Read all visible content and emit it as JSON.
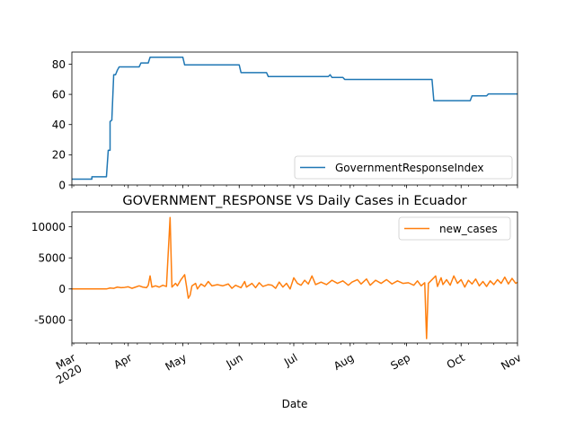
{
  "chart_data": [
    {
      "type": "line",
      "title": "",
      "xlabel": "",
      "ylabel": "",
      "ylim": [
        0,
        88
      ],
      "yticks": [
        0,
        20,
        40,
        60,
        80
      ],
      "legend": "bottom-right",
      "grid": false,
      "series": [
        {
          "name": "GovernmentResponseIndex",
          "color": "#1f77b4",
          "points": [
            [
              "2020-03-01",
              3.85
            ],
            [
              "2020-03-12",
              3.85
            ],
            [
              "2020-03-12",
              5.45
            ],
            [
              "2020-03-20",
              5.45
            ],
            [
              "2020-03-21",
              23
            ],
            [
              "2020-03-22",
              23
            ],
            [
              "2020-03-22",
              42
            ],
            [
              "2020-03-23",
              43
            ],
            [
              "2020-03-23",
              44
            ],
            [
              "2020-03-24",
              73
            ],
            [
              "2020-03-25",
              73
            ],
            [
              "2020-03-26",
              76
            ],
            [
              "2020-03-27",
              78.2
            ],
            [
              "2020-04-07",
              78.2
            ],
            [
              "2020-04-08",
              80.8
            ],
            [
              "2020-04-12",
              80.8
            ],
            [
              "2020-04-13",
              84.6
            ],
            [
              "2020-05-01",
              84.6
            ],
            [
              "2020-05-02",
              79.5
            ],
            [
              "2020-06-01",
              79.5
            ],
            [
              "2020-06-02",
              74.4
            ],
            [
              "2020-06-16",
              74.4
            ],
            [
              "2020-06-17",
              71.8
            ],
            [
              "2020-07-20",
              71.8
            ],
            [
              "2020-07-21",
              73
            ],
            [
              "2020-07-22",
              71.2
            ],
            [
              "2020-07-28",
              71.2
            ],
            [
              "2020-07-29",
              69.9
            ],
            [
              "2020-09-15",
              69.9
            ],
            [
              "2020-09-16",
              55.8
            ],
            [
              "2020-10-06",
              55.8
            ],
            [
              "2020-10-07",
              59
            ],
            [
              "2020-10-15",
              59
            ],
            [
              "2020-10-16",
              60.3
            ],
            [
              "2020-11-01",
              60.3
            ]
          ]
        }
      ]
    },
    {
      "type": "line",
      "title": "GOVERNMENT_RESPONSE VS Daily Cases in Ecuador",
      "xlabel": "Date",
      "ylabel": "",
      "ylim": [
        -8700,
        12400
      ],
      "yticks": [
        -5000,
        0,
        5000,
        10000
      ],
      "xlim": [
        "2020-03-01",
        "2020-11-01"
      ],
      "legend": "top-right",
      "grid": false,
      "series": [
        {
          "name": "new_cases",
          "color": "#ff7f0e",
          "points": [
            [
              "2020-03-01",
              0
            ],
            [
              "2020-03-20",
              0
            ],
            [
              "2020-03-22",
              150
            ],
            [
              "2020-03-24",
              100
            ],
            [
              "2020-03-26",
              300
            ],
            [
              "2020-03-28",
              200
            ],
            [
              "2020-03-30",
              250
            ],
            [
              "2020-04-01",
              350
            ],
            [
              "2020-04-03",
              100
            ],
            [
              "2020-04-05",
              300
            ],
            [
              "2020-04-07",
              500
            ],
            [
              "2020-04-09",
              300
            ],
            [
              "2020-04-11",
              200
            ],
            [
              "2020-04-12",
              600
            ],
            [
              "2020-04-13",
              2100
            ],
            [
              "2020-04-14",
              300
            ],
            [
              "2020-04-16",
              500
            ],
            [
              "2020-04-18",
              300
            ],
            [
              "2020-04-20",
              600
            ],
            [
              "2020-04-22",
              400
            ],
            [
              "2020-04-24",
              11500
            ],
            [
              "2020-04-25",
              300
            ],
            [
              "2020-04-27",
              900
            ],
            [
              "2020-04-28",
              500
            ],
            [
              "2020-04-30",
              1500
            ],
            [
              "2020-05-02",
              2300
            ],
            [
              "2020-05-03",
              500
            ],
            [
              "2020-05-04",
              -1500
            ],
            [
              "2020-05-05",
              -1000
            ],
            [
              "2020-05-06",
              500
            ],
            [
              "2020-05-08",
              900
            ],
            [
              "2020-05-09",
              0
            ],
            [
              "2020-05-11",
              800
            ],
            [
              "2020-05-13",
              400
            ],
            [
              "2020-05-15",
              1200
            ],
            [
              "2020-05-17",
              500
            ],
            [
              "2020-05-20",
              700
            ],
            [
              "2020-05-23",
              500
            ],
            [
              "2020-05-26",
              800
            ],
            [
              "2020-05-28",
              100
            ],
            [
              "2020-05-30",
              600
            ],
            [
              "2020-06-02",
              200
            ],
            [
              "2020-06-04",
              1200
            ],
            [
              "2020-06-05",
              300
            ],
            [
              "2020-06-08",
              900
            ],
            [
              "2020-06-10",
              200
            ],
            [
              "2020-06-12",
              1000
            ],
            [
              "2020-06-14",
              400
            ],
            [
              "2020-06-17",
              700
            ],
            [
              "2020-06-19",
              600
            ],
            [
              "2020-06-21",
              100
            ],
            [
              "2020-06-23",
              1100
            ],
            [
              "2020-06-25",
              300
            ],
            [
              "2020-06-27",
              900
            ],
            [
              "2020-06-29",
              0
            ],
            [
              "2020-07-01",
              1800
            ],
            [
              "2020-07-03",
              900
            ],
            [
              "2020-07-05",
              600
            ],
            [
              "2020-07-07",
              1400
            ],
            [
              "2020-07-09",
              800
            ],
            [
              "2020-07-11",
              2100
            ],
            [
              "2020-07-13",
              700
            ],
            [
              "2020-07-16",
              1100
            ],
            [
              "2020-07-19",
              700
            ],
            [
              "2020-07-22",
              1400
            ],
            [
              "2020-07-25",
              900
            ],
            [
              "2020-07-28",
              1300
            ],
            [
              "2020-07-31",
              600
            ],
            [
              "2020-08-02",
              1100
            ],
            [
              "2020-08-05",
              1500
            ],
            [
              "2020-08-07",
              800
            ],
            [
              "2020-08-10",
              1600
            ],
            [
              "2020-08-12",
              600
            ],
            [
              "2020-08-15",
              1400
            ],
            [
              "2020-08-18",
              900
            ],
            [
              "2020-08-21",
              1500
            ],
            [
              "2020-08-24",
              800
            ],
            [
              "2020-08-27",
              1300
            ],
            [
              "2020-08-30",
              900
            ],
            [
              "2020-09-02",
              1000
            ],
            [
              "2020-09-05",
              600
            ],
            [
              "2020-09-07",
              1300
            ],
            [
              "2020-09-09",
              500
            ],
            [
              "2020-09-11",
              1000
            ],
            [
              "2020-09-12",
              -8000
            ],
            [
              "2020-09-13",
              900
            ],
            [
              "2020-09-15",
              1500
            ],
            [
              "2020-09-17",
              2100
            ],
            [
              "2020-09-18",
              400
            ],
            [
              "2020-09-20",
              1800
            ],
            [
              "2020-09-21",
              700
            ],
            [
              "2020-09-23",
              1500
            ],
            [
              "2020-09-25",
              600
            ],
            [
              "2020-09-27",
              2100
            ],
            [
              "2020-09-29",
              900
            ],
            [
              "2020-10-01",
              1500
            ],
            [
              "2020-10-03",
              300
            ],
            [
              "2020-10-05",
              1400
            ],
            [
              "2020-10-07",
              800
            ],
            [
              "2020-10-09",
              1600
            ],
            [
              "2020-10-11",
              500
            ],
            [
              "2020-10-13",
              1200
            ],
            [
              "2020-10-15",
              400
            ],
            [
              "2020-10-17",
              1300
            ],
            [
              "2020-10-19",
              700
            ],
            [
              "2020-10-21",
              1500
            ],
            [
              "2020-10-23",
              900
            ],
            [
              "2020-10-25",
              1900
            ],
            [
              "2020-10-27",
              800
            ],
            [
              "2020-10-29",
              1700
            ],
            [
              "2020-10-31",
              900
            ],
            [
              "2020-11-01",
              1100
            ]
          ]
        }
      ],
      "x_ticks": [
        {
          "date": "2020-03-01",
          "label": "Mar",
          "sublabel": "2020"
        },
        {
          "date": "2020-04-01",
          "label": "Apr"
        },
        {
          "date": "2020-05-01",
          "label": "May"
        },
        {
          "date": "2020-06-01",
          "label": "Jun"
        },
        {
          "date": "2020-07-01",
          "label": "Jul"
        },
        {
          "date": "2020-08-01",
          "label": "Aug"
        },
        {
          "date": "2020-09-01",
          "label": "Sep"
        },
        {
          "date": "2020-10-01",
          "label": "Oct"
        },
        {
          "date": "2020-11-01",
          "label": "Nov"
        }
      ]
    }
  ]
}
